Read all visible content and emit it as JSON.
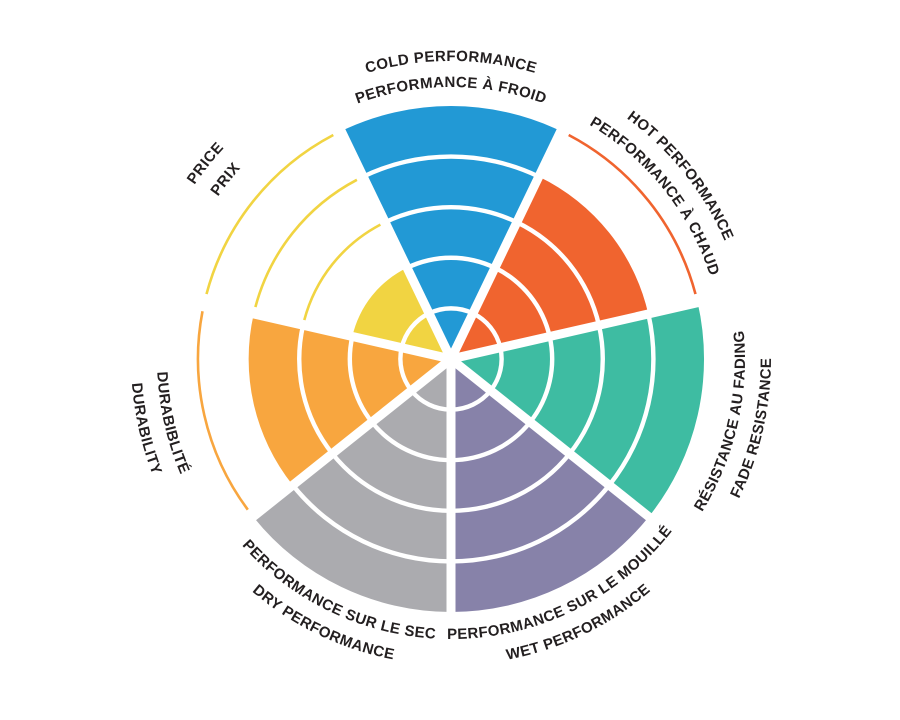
{
  "page": {
    "background": "#FFFFFF"
  },
  "chart_data": {
    "type": "pie",
    "variant": "segmented-radial-rating-wheel",
    "title": "",
    "rings": 5,
    "rating_min": 0,
    "rating_max": 5,
    "divider_color": "#FFFFFF",
    "label_color": "#231F20",
    "legend_position": "around-perimeter",
    "categories": [
      {
        "key": "cold-performance",
        "lines": [
          "COLD PERFORMANCE",
          "PERFORMANCE À FROID"
        ],
        "value": 5,
        "color": "#2299D5"
      },
      {
        "key": "hot-performance",
        "lines": [
          "HOT PERFORMANCE",
          "PERFORMANCE À CHAUD"
        ],
        "value": 4,
        "color": "#F0642F"
      },
      {
        "key": "fade-resistance",
        "lines": [
          "RÉSISTANCE AU FADING",
          "FADE RESISTANCE"
        ],
        "value": 5,
        "color": "#3EBCA2"
      },
      {
        "key": "wet-performance",
        "lines": [
          "PERFORMANCE SUR LE MOUILLÉ",
          "WET PERFORMANCE"
        ],
        "value": 5,
        "color": "#8782A9"
      },
      {
        "key": "dry-performance",
        "lines": [
          "PERFORMANCE SUR LE SEC",
          "DRY PERFORMANCE"
        ],
        "value": 5,
        "color": "#ABABAF"
      },
      {
        "key": "durability",
        "lines": [
          "DURABIBLITÉ",
          "DURABILITY"
        ],
        "value": 4,
        "color": "#F8A63F"
      },
      {
        "key": "price",
        "lines": [
          "PRICE",
          "PRIX"
        ],
        "value": 2,
        "color": "#F1D442"
      }
    ]
  }
}
